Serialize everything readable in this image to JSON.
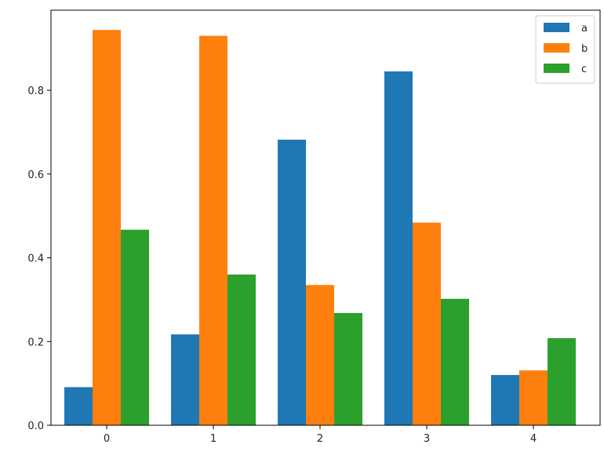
{
  "chart_data": {
    "type": "bar",
    "title": "",
    "xlabel": "",
    "ylabel": "",
    "categories": [
      "0",
      "1",
      "2",
      "3",
      "4"
    ],
    "series": [
      {
        "name": "a",
        "color": "#1f77b4",
        "values": [
          0.091,
          0.217,
          0.682,
          0.845,
          0.12
        ]
      },
      {
        "name": "b",
        "color": "#ff7f0e",
        "values": [
          0.944,
          0.93,
          0.335,
          0.484,
          0.131
        ]
      },
      {
        "name": "c",
        "color": "#2ca02c",
        "values": [
          0.467,
          0.36,
          0.268,
          0.302,
          0.208
        ]
      }
    ],
    "ylim": [
      0,
      0.9912
    ],
    "yticks": [
      0.0,
      0.2,
      0.4,
      0.6,
      0.8
    ],
    "ytick_labels": [
      "0.0",
      "0.2",
      "0.4",
      "0.6",
      "0.8"
    ],
    "grid": false,
    "legend": {
      "position": "top-right"
    }
  }
}
